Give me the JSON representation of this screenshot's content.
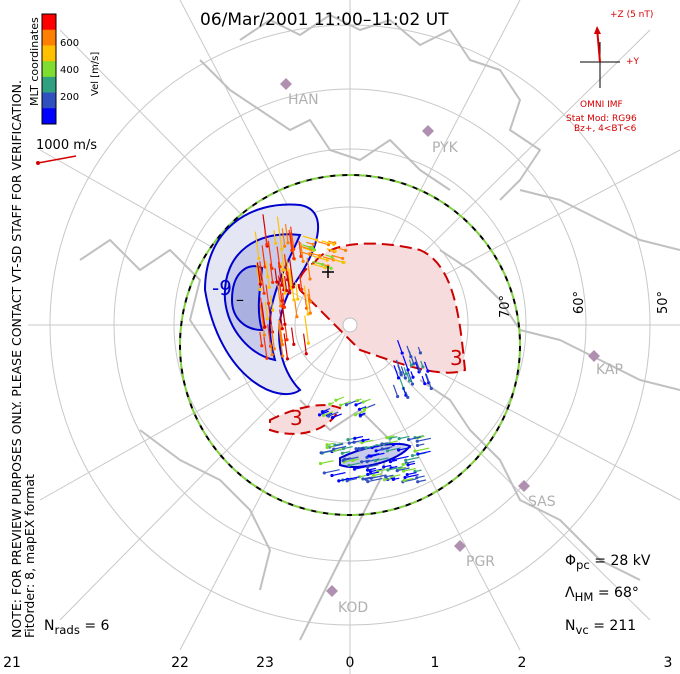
{
  "title": "06/Mar/2001  11:00–11:02  UT",
  "coordinates_label": "MLT coordinates",
  "colorbar": {
    "label": "Vel [m/s]",
    "ticks": [
      "600",
      "400",
      "200"
    ],
    "colors": [
      "#ff0000",
      "#ff7f00",
      "#ffc000",
      "#7fdc30",
      "#30a080",
      "#3050c0",
      "#0000ff"
    ]
  },
  "velocity_scale": "1000 m/s",
  "note": {
    "line1": "NOTE: FOR PREVIEW PURPOSES ONLY. PLEASE CONTACT VT-SD STAFF FOR VERIFICATION.",
    "line2": "FitOrder: 8, mapEX format"
  },
  "imf": {
    "z_label": "+Z (5 nT)",
    "y_label": "+Y",
    "source": "OMNI IMF",
    "model_line1": "Stat Mod: RG96",
    "model_line2": "Bz+, 4<BT<6"
  },
  "stats": {
    "potential": "Φpc = 28 kV",
    "potential_sym": "Φ",
    "potential_sub": "pc",
    "potential_val": " = 28 kV",
    "hm_sym": "Λ",
    "hm_sub": "HM",
    "hm_val": " = 68°",
    "nvc_sym": "N",
    "nvc_sub": "vc",
    "nvc_val": " = 211",
    "nrads_sym": "N",
    "nrads_sub": "rads",
    "nrads_val": " = 6"
  },
  "mlt_ticks": [
    "21",
    "22",
    "23",
    "0",
    "1",
    "2",
    "3"
  ],
  "latitude_labels": [
    "70°",
    "60°",
    "50°"
  ],
  "stations": [
    "HAN",
    "PYK",
    "KAP",
    "SAS",
    "PGR",
    "KOD"
  ],
  "contour_labels": {
    "neg": "-9",
    "pos": "3",
    "minus": "–",
    "plus": "+"
  },
  "colors": {
    "negative_cell": "#0000cc",
    "positive_cell": "#cc0000",
    "hm_boundary": "#80d040",
    "grid": "#c8c8c8",
    "land": "#c8c8c8"
  }
}
